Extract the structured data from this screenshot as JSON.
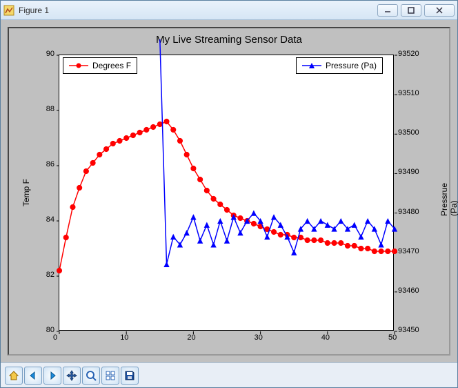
{
  "window": {
    "title": "Figure 1"
  },
  "chart": {
    "type": "line",
    "title": "My Live Streaming Sensor Data",
    "title_fontsize": 15,
    "background_color": "#c0c0c0",
    "axes_background": "#ffffff",
    "xlim": [
      0,
      50
    ],
    "xtick_step": 10,
    "xticks": [
      0,
      10,
      20,
      30,
      40,
      50
    ],
    "y1": {
      "label": "Temp F",
      "lim": [
        80,
        90
      ],
      "tick_step": 2,
      "ticks": [
        80,
        82,
        84,
        86,
        88,
        90
      ],
      "color": "#000000"
    },
    "y2": {
      "label": "Pressrue (Pa)",
      "lim": [
        93450,
        93520
      ],
      "tick_step": 10,
      "ticks": [
        93450,
        93460,
        93470,
        93480,
        93490,
        93500,
        93510,
        93520
      ],
      "color": "#000000"
    },
    "series": [
      {
        "name": "Degrees F",
        "axis": "y1",
        "color": "#ff0000",
        "marker": "circle",
        "marker_size": 5,
        "line_width": 1.5,
        "x": [
          0,
          1,
          2,
          3,
          4,
          5,
          6,
          7,
          8,
          9,
          10,
          11,
          12,
          13,
          14,
          15,
          16,
          17,
          18,
          19,
          20,
          21,
          22,
          23,
          24,
          25,
          26,
          27,
          28,
          29,
          30,
          31,
          32,
          33,
          34,
          35,
          36,
          37,
          38,
          39,
          40,
          41,
          42,
          43,
          44,
          45,
          46,
          47,
          48,
          49,
          50
        ],
        "y": [
          82.2,
          83.4,
          84.5,
          85.2,
          85.8,
          86.1,
          86.4,
          86.6,
          86.8,
          86.9,
          87.0,
          87.1,
          87.2,
          87.3,
          87.4,
          87.5,
          87.6,
          87.3,
          86.9,
          86.4,
          85.9,
          85.5,
          85.1,
          84.8,
          84.6,
          84.4,
          84.2,
          84.1,
          84.0,
          83.9,
          83.8,
          83.7,
          83.6,
          83.5,
          83.5,
          83.4,
          83.4,
          83.3,
          83.3,
          83.3,
          83.2,
          83.2,
          83.2,
          83.1,
          83.1,
          83.0,
          83.0,
          82.9,
          82.9,
          82.9,
          82.9
        ]
      },
      {
        "name": "Pressure (Pa)",
        "axis": "y2",
        "color": "#0000ff",
        "marker": "triangle",
        "marker_size": 5,
        "line_width": 1.5,
        "x": [
          15,
          16,
          17,
          18,
          19,
          20,
          21,
          22,
          23,
          24,
          25,
          26,
          27,
          28,
          29,
          30,
          31,
          32,
          33,
          34,
          35,
          36,
          37,
          38,
          39,
          40,
          41,
          42,
          43,
          44,
          45,
          46,
          47,
          48,
          49,
          50
        ],
        "y": [
          93524,
          93467,
          93474,
          93472,
          93475,
          93479,
          93473,
          93477,
          93472,
          93478,
          93473,
          93479,
          93475,
          93478,
          93480,
          93478,
          93474,
          93479,
          93477,
          93474,
          93470,
          93476,
          93478,
          93476,
          93478,
          93477,
          93476,
          93478,
          93476,
          93477,
          93474,
          93478,
          93476,
          93472,
          93478,
          93476
        ]
      }
    ],
    "legend": {
      "left": {
        "label": "Degrees F",
        "color": "#ff0000",
        "marker": "circle"
      },
      "right": {
        "label": "Pressure (Pa)",
        "color": "#0000ff",
        "marker": "triangle"
      }
    },
    "tick_fontsize": 11,
    "label_fontsize": 12
  },
  "toolbar": {
    "buttons": [
      "home",
      "back",
      "forward",
      "pan",
      "zoom",
      "subplots",
      "save"
    ]
  }
}
